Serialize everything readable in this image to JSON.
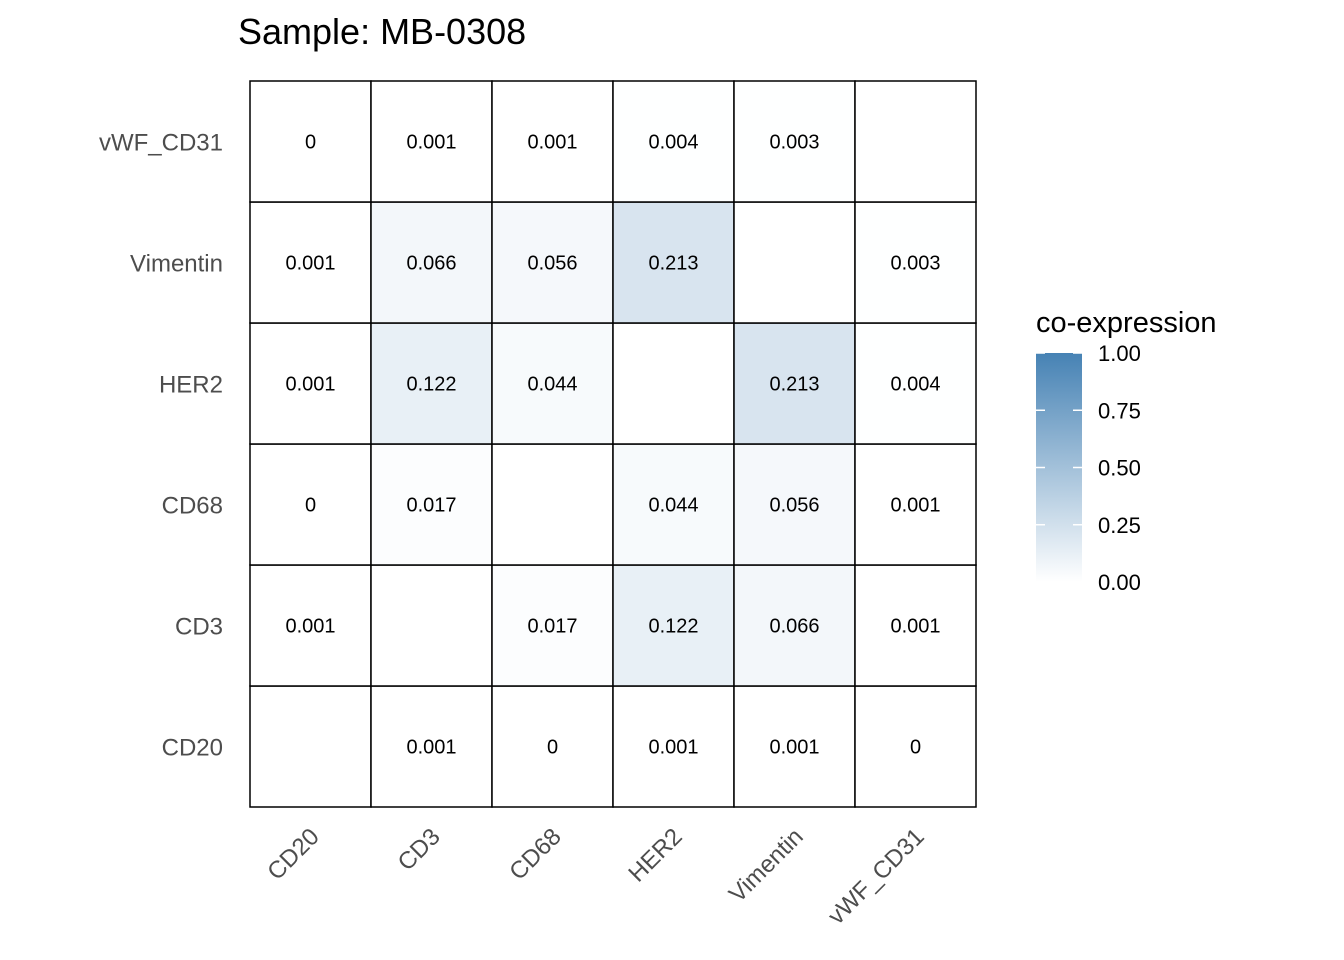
{
  "chart_data": {
    "type": "heatmap",
    "title": "Sample: MB-0308",
    "x_categories": [
      "CD20",
      "CD3",
      "CD68",
      "HER2",
      "Vimentin",
      "vWF_CD31"
    ],
    "y_categories": [
      "CD20",
      "CD3",
      "CD68",
      "HER2",
      "Vimentin",
      "vWF_CD31"
    ],
    "values": [
      [
        null,
        0.001,
        0,
        0.001,
        0.001,
        0
      ],
      [
        0.001,
        null,
        0.017,
        0.122,
        0.066,
        0.001
      ],
      [
        0,
        0.017,
        null,
        0.044,
        0.056,
        0.001
      ],
      [
        0.001,
        0.122,
        0.044,
        null,
        0.213,
        0.004
      ],
      [
        0.001,
        0.066,
        0.056,
        0.213,
        null,
        0.003
      ],
      [
        0,
        0.001,
        0.001,
        0.004,
        0.003,
        null
      ]
    ],
    "labels": [
      [
        "",
        "0.001",
        "0",
        "0.001",
        "0.001",
        "0"
      ],
      [
        "0.001",
        "",
        "0.017",
        "0.122",
        "0.066",
        "0.001"
      ],
      [
        "0",
        "0.017",
        "",
        "0.044",
        "0.056",
        "0.001"
      ],
      [
        "0.001",
        "0.122",
        "0.044",
        "",
        "0.213",
        "0.004"
      ],
      [
        "0.001",
        "0.066",
        "0.056",
        "0.213",
        "",
        "0.003"
      ],
      [
        "0",
        "0.001",
        "0.001",
        "0.004",
        "0.003",
        ""
      ]
    ],
    "legend": {
      "title": "co-expression",
      "ticks": [
        "0.00",
        "0.25",
        "0.50",
        "0.75",
        "1.00"
      ],
      "tick_values": [
        0,
        0.25,
        0.5,
        0.75,
        1.0
      ],
      "range": [
        0,
        1
      ],
      "low_color": "#ffffff",
      "high_color": "#4682b4",
      "placement": "right"
    }
  }
}
